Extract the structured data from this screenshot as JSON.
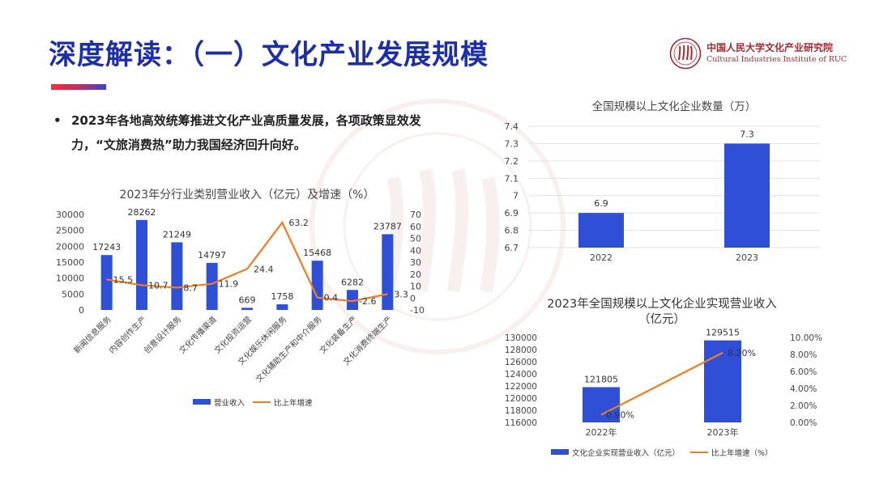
{
  "header": {
    "title": "深度解读：（一）文化产业发展规模",
    "logo_cn": "中国人民大学文化产业研究院",
    "logo_en": "Cultural Industries Institute of RUC"
  },
  "bullet": {
    "text": "2023年各地高效统筹推进文化产业高质量发展，各项政策显效发力，“文旅消费热”助力我国经济回升向好。"
  },
  "colors": {
    "bar": "#2f4fd6",
    "line": "#ef7d22",
    "title": "#1c2fa8"
  },
  "chart_data": [
    {
      "type": "bar",
      "title": "2023年分行业类别营业收入（亿元）及增速（%）",
      "categories": [
        "新闻信息服务",
        "内容创作生产",
        "创意设计服务",
        "文化传播渠道",
        "文化投资运营",
        "文化娱乐休闲服务",
        "文化辅助生产和中介服务",
        "文化装备生产",
        "文化消费终端生产"
      ],
      "series": [
        {
          "name": "营业收入",
          "type": "bar",
          "axis": "left",
          "values": [
            17243,
            28262,
            21249,
            14797,
            669,
            1758,
            15468,
            6282,
            23787
          ]
        },
        {
          "name": "比上年增速",
          "type": "line",
          "axis": "right",
          "values": [
            15.5,
            10.7,
            8.7,
            11.9,
            24.4,
            63.2,
            0.4,
            -2.6,
            3.3
          ]
        }
      ],
      "value_labels_left": [
        "17243",
        "28262",
        "21249",
        "14797",
        "669",
        "1758",
        "15468",
        "6282",
        "23787"
      ],
      "value_labels_right": [
        "15.5",
        "10.7",
        "8.7",
        "11.9",
        "24.4",
        "63.2",
        "0.4",
        "-2.6",
        "3.3"
      ],
      "ylim": [
        0,
        30000
      ],
      "yticks": [
        "0",
        "5000",
        "10000",
        "15000",
        "20000",
        "25000",
        "30000"
      ],
      "y2lim": [
        -10,
        70
      ],
      "y2ticks": [
        "-10",
        "0",
        "10",
        "20",
        "30",
        "40",
        "50",
        "60",
        "70"
      ],
      "legend": "bottom"
    },
    {
      "type": "bar",
      "title": "全国规模以上文化企业数量（万）",
      "categories": [
        "2022",
        "2023"
      ],
      "values": [
        6.9,
        7.3
      ],
      "value_labels": [
        "6.9",
        "7.3"
      ],
      "ylim": [
        6.7,
        7.4
      ],
      "yticks": [
        "6.7",
        "6.8",
        "6.9",
        "7",
        "7.1",
        "7.2",
        "7.3",
        "7.4"
      ],
      "grid": true
    },
    {
      "type": "bar",
      "title": "2023年全国规模以上文化企业实现营业收入",
      "title_line2": "（亿元）",
      "categories": [
        "2022年",
        "2023年"
      ],
      "series": [
        {
          "name": "文化企业实现营业收入（亿元）",
          "type": "bar",
          "axis": "left",
          "values": [
            121805,
            129515
          ]
        },
        {
          "name": "比上年增速（%）",
          "type": "line",
          "axis": "right",
          "values": [
            0.9,
            8.2
          ]
        }
      ],
      "value_labels_left": [
        "121805",
        "129515"
      ],
      "value_labels_right": [
        "0.90%",
        "8.20%"
      ],
      "ylim": [
        116000,
        130000
      ],
      "yticks": [
        "116000",
        "118000",
        "120000",
        "122000",
        "124000",
        "126000",
        "128000",
        "130000"
      ],
      "y2lim": [
        0,
        10
      ],
      "y2ticks": [
        "0.00%",
        "2.00%",
        "4.00%",
        "6.00%",
        "8.00%",
        "10.00%"
      ],
      "legend": "bottom"
    }
  ]
}
